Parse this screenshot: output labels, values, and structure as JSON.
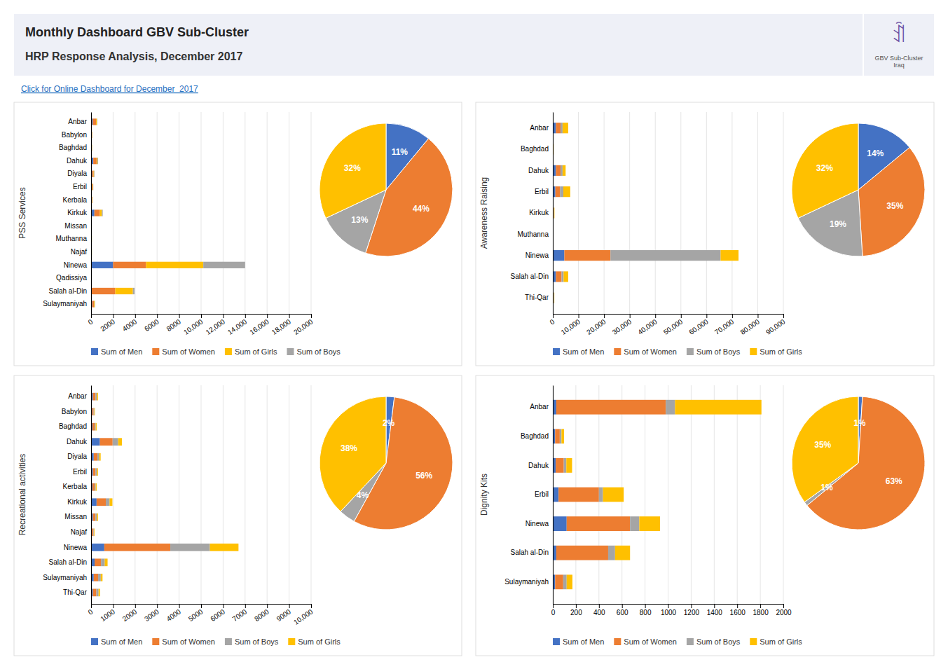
{
  "title": "Monthly Dashboard GBV Sub-Cluster",
  "subtitle": "HRP Response Analysis, December 2017",
  "annotations": [
    "ꀉ",
    "GBV Sub-Cluster\nIraq",
    "Click for Online Dashboard for December  2017"
  ],
  "chart_data": [
    {
      "type": "bar",
      "orientation": "horizontal",
      "stacked": true,
      "grid": true,
      "legend": "bottom",
      "ylabel": "PSS Services",
      "categories": [
        "Anbar",
        "Babylon",
        "Baghdad",
        "Dahuk",
        "Diyala",
        "Erbil",
        "Kerbala",
        "Kirkuk",
        "Missan",
        "Muthanna",
        "Najaf",
        "Ninewa",
        "Qadissiya",
        "Salah al-Din",
        "Sulaymaniyah"
      ],
      "series": [
        {
          "name": "Sum of Men",
          "color": "#4472c4",
          "values": [
            150,
            30,
            30,
            200,
            100,
            60,
            40,
            300,
            0,
            20,
            20,
            2000,
            0,
            0,
            100
          ]
        },
        {
          "name": "Sum of Women",
          "color": "#ed7d31",
          "values": [
            300,
            60,
            50,
            300,
            130,
            80,
            60,
            500,
            10,
            40,
            40,
            3000,
            20,
            2200,
            170
          ]
        },
        {
          "name": "Sum of Girls",
          "color": "#ffc000",
          "values": [
            80,
            20,
            15,
            80,
            50,
            35,
            25,
            180,
            4,
            15,
            15,
            5200,
            8,
            1600,
            60
          ]
        },
        {
          "name": "Sum of Boys",
          "color": "#a5a5a5",
          "values": [
            40,
            15,
            10,
            60,
            35,
            25,
            15,
            80,
            2,
            8,
            8,
            3800,
            4,
            150,
            30
          ]
        }
      ],
      "xlim": [
        0,
        20000
      ],
      "xticks": [
        0,
        2000,
        4000,
        6000,
        8000,
        {
          "value": 10000,
          "label": "10,000"
        },
        {
          "value": 12000,
          "label": "12,000"
        },
        {
          "value": 14000,
          "label": "14,000"
        },
        {
          "value": 16000,
          "label": "16,000"
        },
        {
          "value": 18000,
          "label": "18,000"
        },
        {
          "value": 20000,
          "label": "20,000"
        }
      ]
    },
    {
      "type": "pie",
      "data_labels": true,
      "values": [
        11,
        44,
        13,
        32
      ],
      "value_labels": [
        "11%",
        "44%",
        "13%",
        "32%"
      ],
      "colors": [
        "#4472c4",
        "#ed7d31",
        "#a5a5a5",
        "#ffc000"
      ]
    },
    {
      "type": "bar",
      "orientation": "horizontal",
      "stacked": true,
      "grid": true,
      "legend": "bottom",
      "ylabel": "Awareness Raising",
      "categories": [
        "Anbar",
        "Baghdad",
        "Dahuk",
        "Erbil",
        "Kirkuk",
        "Muthanna",
        "Ninewa",
        "Salah al-Din",
        "Thi-Qar"
      ],
      "series": [
        {
          "name": "Sum of Men",
          "color": "#4472c4",
          "values": [
            1200,
            80,
            1200,
            1000,
            150,
            30,
            4500,
            1200,
            80
          ]
        },
        {
          "name": "Sum of Women",
          "color": "#ed7d31",
          "values": [
            1800,
            150,
            1800,
            1800,
            250,
            60,
            18000,
            2200,
            250
          ]
        },
        {
          "name": "Sum of Boys",
          "color": "#a5a5a5",
          "values": [
            800,
            40,
            800,
            1300,
            80,
            20,
            43000,
            800,
            150
          ]
        },
        {
          "name": "Sum of Girls",
          "color": "#ffc000",
          "values": [
            2200,
            60,
            1200,
            2700,
            150,
            30,
            7000,
            1800,
            100
          ]
        }
      ],
      "xlim": [
        0,
        90000
      ],
      "xticks": [
        0,
        {
          "value": 10000,
          "label": "10,000"
        },
        {
          "value": 20000,
          "label": "20,000"
        },
        {
          "value": 30000,
          "label": "30,000"
        },
        {
          "value": 40000,
          "label": "40,000"
        },
        {
          "value": 50000,
          "label": "50,000"
        },
        {
          "value": 60000,
          "label": "60,000"
        },
        {
          "value": 70000,
          "label": "70,000"
        },
        {
          "value": 80000,
          "label": "80,000"
        },
        {
          "value": 90000,
          "label": "90,000"
        }
      ]
    },
    {
      "type": "pie",
      "data_labels": true,
      "values": [
        14,
        35,
        19,
        32
      ],
      "value_labels": [
        "14%",
        "35%",
        "19%",
        "32%"
      ],
      "colors": [
        "#4472c4",
        "#ed7d31",
        "#a5a5a5",
        "#ffc000"
      ]
    },
    {
      "type": "bar",
      "orientation": "horizontal",
      "stacked": true,
      "grid": true,
      "legend": "bottom",
      "ylabel": "Recreational activities",
      "categories": [
        "Anbar",
        "Babylon",
        "Baghdad",
        "Dahuk",
        "Diyala",
        "Erbil",
        "Kerbala",
        "Kirkuk",
        "Missan",
        "Najaf",
        "Ninewa",
        "Salah al-Din",
        "Sulaymaniyah",
        "Thi-Qar"
      ],
      "series": [
        {
          "name": "Sum of Men",
          "color": "#4472c4",
          "values": [
            80,
            50,
            60,
            400,
            120,
            80,
            60,
            250,
            80,
            40,
            600,
            160,
            120,
            80
          ]
        },
        {
          "name": "Sum of Women",
          "color": "#ed7d31",
          "values": [
            120,
            65,
            100,
            580,
            170,
            120,
            100,
            420,
            120,
            65,
            3000,
            290,
            200,
            160
          ]
        },
        {
          "name": "Sum of Boys",
          "color": "#a5a5a5",
          "values": [
            65,
            32,
            50,
            250,
            80,
            65,
            50,
            170,
            65,
            32,
            1800,
            170,
            120,
            100
          ]
        },
        {
          "name": "Sum of Girls",
          "color": "#ffc000",
          "values": [
            50,
            25,
            42,
            170,
            65,
            50,
            42,
            130,
            50,
            25,
            1300,
            130,
            80,
            65
          ]
        }
      ],
      "xlim": [
        0,
        10000
      ],
      "xticks": [
        0,
        1000,
        2000,
        3000,
        4000,
        5000,
        6000,
        7000,
        8000,
        9000,
        {
          "value": 10000,
          "label": "10,000"
        }
      ]
    },
    {
      "type": "pie",
      "data_labels": true,
      "values": [
        2,
        56,
        4,
        38
      ],
      "value_labels": [
        "2%",
        "56%",
        "4%",
        "38%"
      ],
      "colors": [
        "#4472c4",
        "#ed7d31",
        "#a5a5a5",
        "#ffc000"
      ]
    },
    {
      "type": "bar",
      "orientation": "horizontal",
      "stacked": true,
      "grid": true,
      "legend": "bottom",
      "ylabel": "Dignity Kits",
      "categories": [
        "Anbar",
        "Baghdad",
        "Dahuk",
        "Erbil",
        "Ninewa",
        "Salah al-Din",
        "Sulaymaniyah"
      ],
      "series": [
        {
          "name": "Sum of Men",
          "color": "#4472c4",
          "values": [
            30,
            20,
            25,
            50,
            120,
            30,
            20
          ]
        },
        {
          "name": "Sum of Women",
          "color": "#ed7d31",
          "values": [
            950,
            40,
            70,
            350,
            550,
            450,
            70
          ]
        },
        {
          "name": "Sum of Boys",
          "color": "#a5a5a5",
          "values": [
            80,
            15,
            22,
            35,
            80,
            60,
            30
          ]
        },
        {
          "name": "Sum of Girls",
          "color": "#ffc000",
          "values": [
            750,
            22,
            50,
            180,
            180,
            130,
            50
          ]
        }
      ],
      "xlim": [
        0,
        2000
      ],
      "xticks": [
        0,
        200,
        400,
        600,
        800,
        1000,
        1200,
        1400,
        1600,
        1800,
        2000
      ]
    },
    {
      "type": "pie",
      "data_labels": true,
      "values": [
        1,
        63,
        1,
        35
      ],
      "value_labels": [
        "1%",
        "63%",
        "1%",
        "35%"
      ],
      "colors": [
        "#4472c4",
        "#ed7d31",
        "#a5a5a5",
        "#ffc000"
      ]
    }
  ]
}
